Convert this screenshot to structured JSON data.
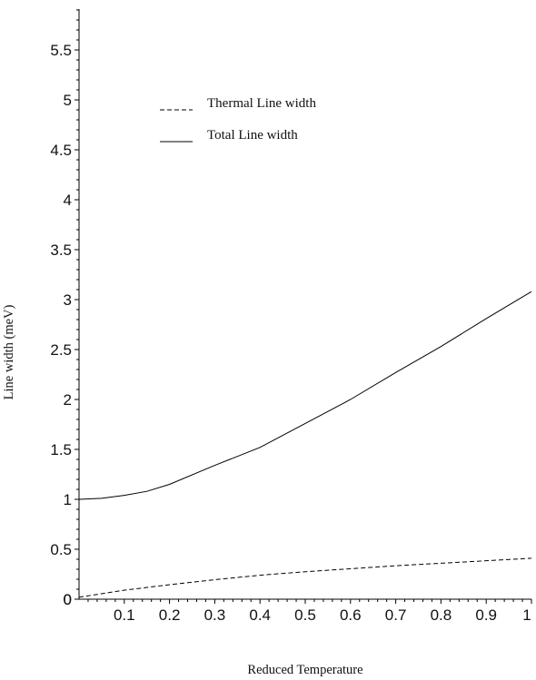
{
  "chart_data": {
    "type": "line",
    "title": "",
    "xlabel": "Reduced Temperature",
    "ylabel": "Line width (meV)",
    "xlim": [
      0,
      1
    ],
    "ylim": [
      0,
      5.9
    ],
    "x_ticks": [
      "0.1",
      "0.2",
      "0.3",
      "0.4",
      "0.5",
      "0.6",
      "0.7",
      "0.8",
      "0.9",
      "1"
    ],
    "x_tick_values": [
      0.1,
      0.2,
      0.3,
      0.4,
      0.5,
      0.6,
      0.7,
      0.8,
      0.9,
      1.0
    ],
    "y_ticks": [
      "0",
      "0.5",
      "1",
      "1.5",
      "2",
      "2.5",
      "3",
      "3.5",
      "4",
      "4.5",
      "5",
      "5.5"
    ],
    "y_tick_values": [
      0,
      0.5,
      1,
      1.5,
      2,
      2.5,
      3,
      3.5,
      4,
      4.5,
      5,
      5.5
    ],
    "grid": false,
    "legend_position": "top-left",
    "series": [
      {
        "name": "Thermal Line width",
        "style": "dashed",
        "color": "#000000",
        "x": [
          0.0,
          0.1,
          0.2,
          0.3,
          0.4,
          0.5,
          0.6,
          0.7,
          0.8,
          0.9,
          1.0
        ],
        "y": [
          0.02,
          0.09,
          0.145,
          0.195,
          0.24,
          0.275,
          0.305,
          0.335,
          0.36,
          0.385,
          0.41
        ]
      },
      {
        "name": "Total Line width",
        "style": "solid",
        "color": "#000000",
        "x": [
          0.0,
          0.05,
          0.1,
          0.15,
          0.2,
          0.3,
          0.4,
          0.5,
          0.6,
          0.7,
          0.8,
          0.9,
          1.0
        ],
        "y": [
          1.0,
          1.01,
          1.04,
          1.08,
          1.15,
          1.34,
          1.52,
          1.76,
          2.0,
          2.27,
          2.53,
          2.81,
          3.08
        ]
      }
    ]
  }
}
